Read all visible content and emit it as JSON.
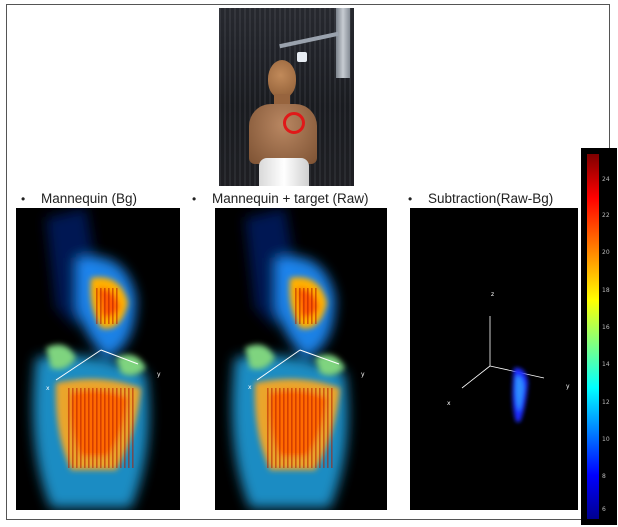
{
  "captions": {
    "bullet": "•",
    "left": "Mannequin (Bg)",
    "middle": "Mannequin + target (Raw)",
    "right": "Subtraction(Raw-Bg)"
  },
  "axes": {
    "x": "x",
    "y": "y",
    "z": "z"
  },
  "colorbar": {
    "ticks": [
      "24",
      "22",
      "20",
      "18",
      "16",
      "14",
      "12",
      "10",
      "8",
      "6"
    ]
  },
  "icons": {
    "photo": "mannequin-photo-icon",
    "target_marker": "red-circle-target-icon"
  }
}
